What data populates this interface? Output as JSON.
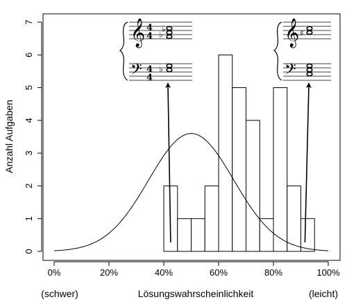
{
  "chart_data": {
    "type": "bar",
    "subtype": "histogram",
    "bin_width": 0.05,
    "bins": [
      {
        "x0": 0.4,
        "x1": 0.45,
        "value": 2
      },
      {
        "x0": 0.45,
        "x1": 0.5,
        "value": 1
      },
      {
        "x0": 0.5,
        "x1": 0.55,
        "value": 1
      },
      {
        "x0": 0.55,
        "x1": 0.6,
        "value": 2
      },
      {
        "x0": 0.6,
        "x1": 0.65,
        "value": 6
      },
      {
        "x0": 0.65,
        "x1": 0.7,
        "value": 5
      },
      {
        "x0": 0.7,
        "x1": 0.75,
        "value": 4
      },
      {
        "x0": 0.75,
        "x1": 0.8,
        "value": 1
      },
      {
        "x0": 0.8,
        "x1": 0.85,
        "value": 5
      },
      {
        "x0": 0.85,
        "x1": 0.9,
        "value": 2
      },
      {
        "x0": 0.9,
        "x1": 0.95,
        "value": 1
      }
    ],
    "curve": {
      "type": "normal",
      "mean": 0.5,
      "sd": 0.155,
      "peak": 3.6
    },
    "xlim": [
      0,
      1
    ],
    "ylim": [
      0,
      7
    ],
    "x_ticks": [
      0,
      0.2,
      0.4,
      0.6,
      0.8,
      1.0
    ],
    "x_tick_labels": [
      "0%",
      "20%",
      "40%",
      "60%",
      "80%",
      "100%"
    ],
    "y_ticks": [
      0,
      1,
      2,
      3,
      4,
      5,
      6,
      7
    ],
    "y_tick_labels": [
      "0",
      "1",
      "2",
      "3",
      "4",
      "5",
      "6",
      "7"
    ],
    "xlabel": "Lösungswahrscheinlichkeit",
    "xlabel_left": "(schwer)",
    "xlabel_right": "(leicht)",
    "ylabel": "Anzahl Aufgaben",
    "grid": false,
    "annotations": [
      {
        "kind": "score-inset",
        "time_signature": [
          "4",
          "4"
        ],
        "accidental": "flat",
        "points_to": 0.42
      },
      {
        "kind": "score-inset",
        "time_signature": null,
        "accidental": "sharp",
        "points_to": 0.92
      }
    ]
  }
}
